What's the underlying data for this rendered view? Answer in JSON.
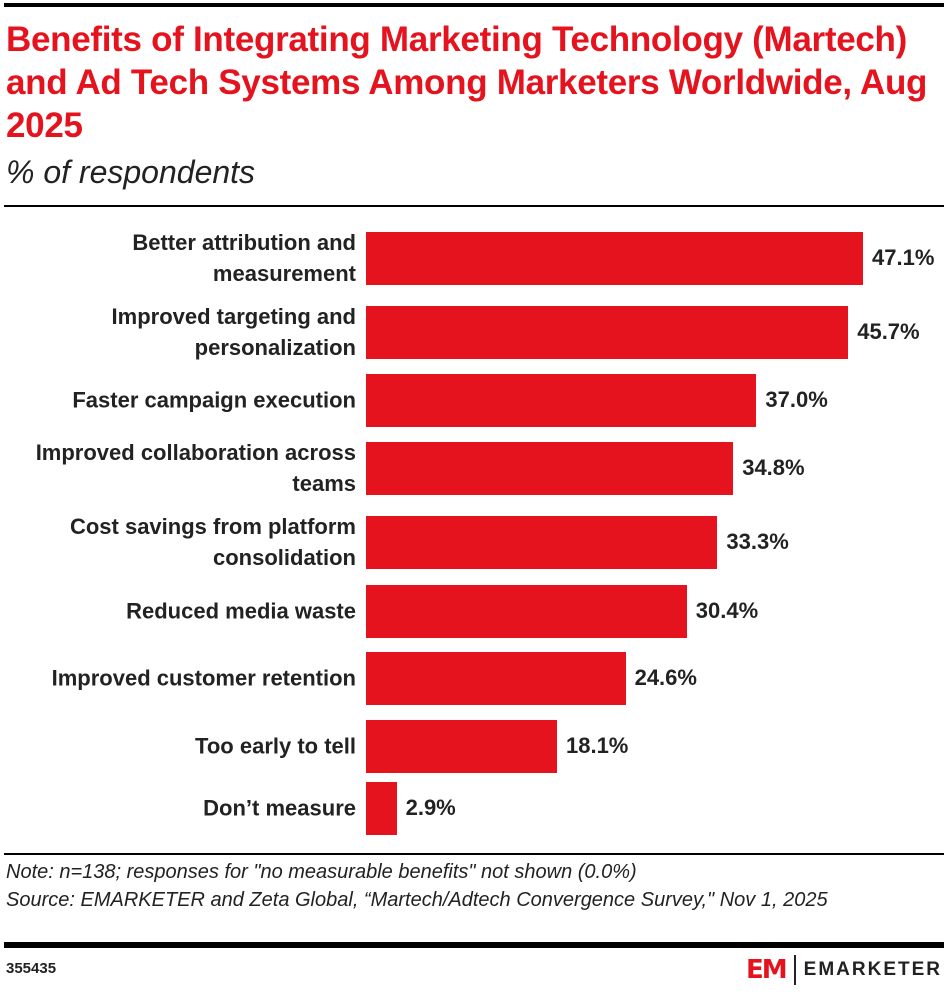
{
  "chart_data": {
    "type": "bar",
    "orientation": "horizontal",
    "title": "Benefits of Integrating Marketing Technology (Martech) and Ad Tech Systems Among Marketers Worldwide, Aug 2025",
    "subtitle": "% of respondents",
    "categories": [
      "Better attribution and measurement",
      "Improved targeting and personalization",
      "Faster campaign execution",
      "Improved collaboration across teams",
      "Cost savings from platform consolidation",
      "Reduced media waste",
      "Improved customer retention",
      "Too early to tell",
      "Don’t measure"
    ],
    "values": [
      47.1,
      45.7,
      37.0,
      34.8,
      33.3,
      30.4,
      24.6,
      18.1,
      2.9
    ],
    "labels": [
      "47.1%",
      "45.7%",
      "37.0%",
      "34.8%",
      "33.3%",
      "30.4%",
      "24.6%",
      "18.1%",
      "2.9%"
    ],
    "grid": false,
    "bar_color": "#e5131d"
  },
  "note": "Note: n=138; responses for \"no measurable benefits\" not shown (0.0%)",
  "source": "Source: EMARKETER and Zeta Global, “Martech/Adtech Convergence Survey,\" Nov 1, 2025",
  "chart_id": "355435",
  "brand": {
    "mark": "EM",
    "name": "EMARKETER"
  }
}
